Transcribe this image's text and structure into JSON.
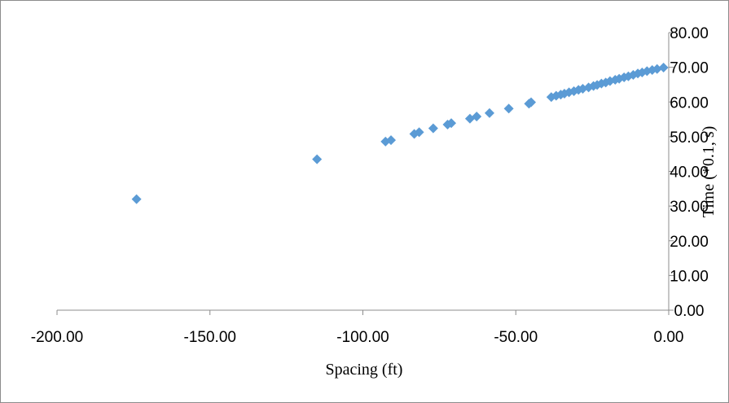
{
  "chart_data": {
    "type": "scatter",
    "title": "",
    "xlabel": "Spacing (ft)",
    "ylabel": "Time (*0.1, s)",
    "xlim": [
      -200,
      0
    ],
    "ylim": [
      0,
      80
    ],
    "x_ticks": [
      "-200.00",
      "-150.00",
      "-100.00",
      "-50.00",
      "0.00"
    ],
    "y_ticks": [
      "0.00",
      "10.00",
      "20.00",
      "30.00",
      "40.00",
      "50.00",
      "60.00",
      "70.00",
      "80.00"
    ],
    "grid": false,
    "legend": "none",
    "marker": "diamond",
    "marker_color": "#5b9bd5",
    "series": [
      {
        "points": [
          [
            -174,
            32
          ],
          [
            -115,
            43.5
          ],
          [
            -92.6,
            48.6
          ],
          [
            -90.8,
            49
          ],
          [
            -83.2,
            50.8
          ],
          [
            -81.6,
            51.3
          ],
          [
            -77,
            52.4
          ],
          [
            -72.3,
            53.5
          ],
          [
            -71.1,
            53.9
          ],
          [
            -65,
            55.2
          ],
          [
            -62.8,
            55.8
          ],
          [
            -58.6,
            56.8
          ],
          [
            -52.3,
            58.1
          ],
          [
            -45.7,
            59.5
          ],
          [
            -45,
            59.9
          ],
          [
            -38.4,
            61.4
          ],
          [
            -36.8,
            61.8
          ],
          [
            -35.3,
            62.1
          ],
          [
            -34.1,
            62.4
          ],
          [
            -32.6,
            62.8
          ],
          [
            -31,
            63.1
          ],
          [
            -29.5,
            63.5
          ],
          [
            -28.1,
            63.8
          ],
          [
            -26.2,
            64.2
          ],
          [
            -24.6,
            64.6
          ],
          [
            -23.4,
            64.9
          ],
          [
            -22,
            65.3
          ],
          [
            -20.6,
            65.6
          ],
          [
            -19.2,
            66
          ],
          [
            -17.5,
            66.4
          ],
          [
            -16.2,
            66.7
          ],
          [
            -14.6,
            67.1
          ],
          [
            -13.2,
            67.4
          ],
          [
            -11.6,
            67.8
          ],
          [
            -10.1,
            68.2
          ],
          [
            -8.7,
            68.5
          ],
          [
            -7.1,
            68.9
          ],
          [
            -5.4,
            69.2
          ],
          [
            -3.8,
            69.5
          ],
          [
            -1.7,
            69.9
          ]
        ]
      }
    ]
  }
}
